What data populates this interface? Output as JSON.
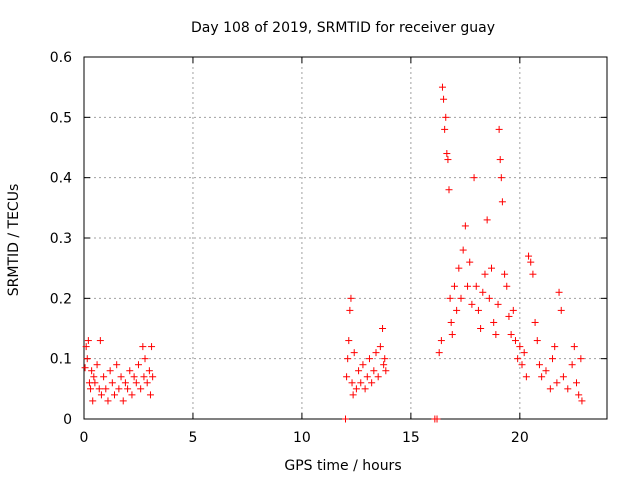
{
  "chart_data": {
    "type": "scatter",
    "title": "Day 108 of 2019, SRMTID for receiver guay",
    "xlabel": "GPS time / hours",
    "ylabel": "SRMTID / TECUs",
    "xlim": [
      0,
      24
    ],
    "ylim": [
      0,
      0.6
    ],
    "grid": true,
    "marker": "+",
    "color": "#ff0000",
    "x_ticks": [
      0,
      5,
      10,
      15,
      20
    ],
    "x_tick_labels": [
      "0",
      "5",
      "10",
      "15",
      "20"
    ],
    "y_ticks": [
      0,
      0.1,
      0.2,
      0.3,
      0.4,
      0.5,
      0.6
    ],
    "y_tick_labels": [
      "0",
      "0.1",
      "0.2",
      "0.3",
      "0.4",
      "0.5",
      "0.6"
    ],
    "series": [
      {
        "name": "SRMTID",
        "points": [
          [
            0.05,
            0.085
          ],
          [
            0.1,
            0.12
          ],
          [
            0.15,
            0.1
          ],
          [
            0.2,
            0.13
          ],
          [
            0.25,
            0.06
          ],
          [
            0.3,
            0.05
          ],
          [
            0.35,
            0.08
          ],
          [
            0.4,
            0.03
          ],
          [
            0.45,
            0.07
          ],
          [
            0.5,
            0.06
          ],
          [
            0.6,
            0.09
          ],
          [
            0.7,
            0.05
          ],
          [
            0.75,
            0.13
          ],
          [
            0.8,
            0.04
          ],
          [
            0.9,
            0.07
          ],
          [
            1.0,
            0.05
          ],
          [
            1.1,
            0.03
          ],
          [
            1.2,
            0.08
          ],
          [
            1.3,
            0.06
          ],
          [
            1.4,
            0.04
          ],
          [
            1.5,
            0.09
          ],
          [
            1.6,
            0.05
          ],
          [
            1.7,
            0.07
          ],
          [
            1.8,
            0.03
          ],
          [
            1.9,
            0.06
          ],
          [
            2.0,
            0.05
          ],
          [
            2.1,
            0.08
          ],
          [
            2.2,
            0.04
          ],
          [
            2.3,
            0.07
          ],
          [
            2.4,
            0.06
          ],
          [
            2.5,
            0.09
          ],
          [
            2.6,
            0.05
          ],
          [
            2.7,
            0.12
          ],
          [
            2.75,
            0.07
          ],
          [
            2.8,
            0.1
          ],
          [
            2.9,
            0.06
          ],
          [
            3.0,
            0.08
          ],
          [
            3.05,
            0.04
          ],
          [
            3.1,
            0.12
          ],
          [
            3.15,
            0.07
          ],
          [
            12.0,
            0.0
          ],
          [
            12.05,
            0.07
          ],
          [
            12.1,
            0.1
          ],
          [
            12.15,
            0.13
          ],
          [
            12.2,
            0.18
          ],
          [
            12.25,
            0.2
          ],
          [
            12.3,
            0.06
          ],
          [
            12.35,
            0.04
          ],
          [
            12.4,
            0.11
          ],
          [
            12.5,
            0.05
          ],
          [
            12.6,
            0.08
          ],
          [
            12.7,
            0.06
          ],
          [
            12.8,
            0.09
          ],
          [
            12.9,
            0.05
          ],
          [
            13.0,
            0.07
          ],
          [
            13.1,
            0.1
          ],
          [
            13.2,
            0.06
          ],
          [
            13.3,
            0.08
          ],
          [
            13.4,
            0.11
          ],
          [
            13.5,
            0.07
          ],
          [
            13.6,
            0.12
          ],
          [
            13.7,
            0.15
          ],
          [
            13.75,
            0.09
          ],
          [
            13.8,
            0.1
          ],
          [
            13.85,
            0.08
          ],
          [
            16.1,
            0.0
          ],
          [
            16.2,
            0.0
          ],
          [
            16.3,
            0.11
          ],
          [
            16.4,
            0.13
          ],
          [
            16.45,
            0.55
          ],
          [
            16.5,
            0.53
          ],
          [
            16.55,
            0.48
          ],
          [
            16.6,
            0.5
          ],
          [
            16.65,
            0.44
          ],
          [
            16.7,
            0.43
          ],
          [
            16.75,
            0.38
          ],
          [
            16.8,
            0.2
          ],
          [
            16.85,
            0.16
          ],
          [
            16.9,
            0.14
          ],
          [
            17.0,
            0.22
          ],
          [
            17.1,
            0.18
          ],
          [
            17.2,
            0.25
          ],
          [
            17.3,
            0.2
          ],
          [
            17.4,
            0.28
          ],
          [
            17.5,
            0.32
          ],
          [
            17.6,
            0.22
          ],
          [
            17.7,
            0.26
          ],
          [
            17.8,
            0.19
          ],
          [
            17.9,
            0.4
          ],
          [
            18.0,
            0.22
          ],
          [
            18.1,
            0.18
          ],
          [
            18.2,
            0.15
          ],
          [
            18.3,
            0.21
          ],
          [
            18.4,
            0.24
          ],
          [
            18.5,
            0.33
          ],
          [
            18.6,
            0.2
          ],
          [
            18.7,
            0.25
          ],
          [
            18.8,
            0.16
          ],
          [
            18.9,
            0.14
          ],
          [
            19.0,
            0.19
          ],
          [
            19.05,
            0.48
          ],
          [
            19.1,
            0.43
          ],
          [
            19.15,
            0.4
          ],
          [
            19.2,
            0.36
          ],
          [
            19.3,
            0.24
          ],
          [
            19.4,
            0.22
          ],
          [
            19.5,
            0.17
          ],
          [
            19.6,
            0.14
          ],
          [
            19.7,
            0.18
          ],
          [
            19.8,
            0.13
          ],
          [
            19.9,
            0.1
          ],
          [
            20.0,
            0.12
          ],
          [
            20.1,
            0.09
          ],
          [
            20.2,
            0.11
          ],
          [
            20.3,
            0.07
          ],
          [
            20.4,
            0.27
          ],
          [
            20.5,
            0.26
          ],
          [
            20.6,
            0.24
          ],
          [
            20.7,
            0.16
          ],
          [
            20.8,
            0.13
          ],
          [
            20.9,
            0.09
          ],
          [
            21.0,
            0.07
          ],
          [
            21.2,
            0.08
          ],
          [
            21.4,
            0.05
          ],
          [
            21.5,
            0.1
          ],
          [
            21.6,
            0.12
          ],
          [
            21.7,
            0.06
          ],
          [
            21.8,
            0.21
          ],
          [
            21.9,
            0.18
          ],
          [
            22.0,
            0.07
          ],
          [
            22.2,
            0.05
          ],
          [
            22.4,
            0.09
          ],
          [
            22.5,
            0.12
          ],
          [
            22.6,
            0.06
          ],
          [
            22.7,
            0.04
          ],
          [
            22.8,
            0.1
          ],
          [
            22.85,
            0.03
          ]
        ]
      }
    ]
  }
}
